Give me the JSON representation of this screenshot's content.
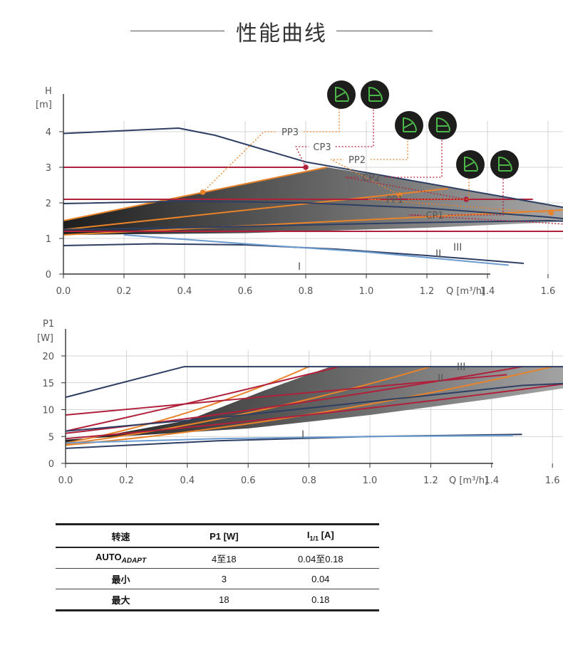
{
  "page": {
    "title": "性能曲线"
  },
  "chart_data": [
    {
      "type": "line",
      "ylabel_top": "H",
      "yunit": "[m]",
      "xlabel": "Q [m³/h]",
      "xlim": [
        0,
        2.6
      ],
      "ylim": [
        0,
        5
      ],
      "xticks": [
        "0.0",
        "0.2",
        "0.4",
        "0.6",
        "0.8",
        "1.0",
        "1.2",
        "1.4",
        "1.6",
        "1.8",
        "2.0",
        "2.2",
        "2.4"
      ],
      "yticks": [
        "0",
        "1",
        "2",
        "3",
        "4"
      ],
      "grid": true,
      "speed_labels": [
        "III",
        "II",
        "I"
      ],
      "mode_icon_names": [
        "proportional-pressure-icon",
        "constant-pressure-icon"
      ],
      "series": [
        {
          "name": "III",
          "color": "#2e3f63",
          "x": [
            0,
            0.38,
            0.5,
            0.8,
            1.2,
            1.6,
            2.0,
            2.4,
            2.55
          ],
          "y": [
            3.95,
            4.1,
            3.9,
            3.15,
            2.55,
            1.95,
            1.35,
            0.8,
            0.82
          ]
        },
        {
          "name": "II",
          "color": "#2e3f63",
          "x": [
            0,
            0.4,
            0.8,
            1.2,
            1.6,
            2.0,
            2.3,
            2.43
          ],
          "y": [
            1.98,
            2.05,
            2.0,
            1.85,
            1.6,
            1.25,
            0.92,
            0.78
          ]
        },
        {
          "name": "I",
          "color": "#2e3f63",
          "x": [
            0,
            0.3,
            0.6,
            0.9,
            1.2,
            1.52
          ],
          "y": [
            0.8,
            0.85,
            0.82,
            0.7,
            0.52,
            0.3
          ]
        },
        {
          "name": "",
          "color": "#6c9bd0",
          "x": [
            0.2,
            0.6,
            1.0,
            1.47
          ],
          "y": [
            1.1,
            0.85,
            0.62,
            0.25
          ]
        },
        {
          "name": "",
          "color": "#2e3f63",
          "x": [
            0,
            0.4,
            0.8,
            1.2,
            1.6,
            2.0
          ],
          "y": [
            1.25,
            1.3,
            1.38,
            1.45,
            1.5,
            1.38
          ]
        }
      ],
      "control_lines": [
        {
          "name": "PP3",
          "type": "pp",
          "x": [
            0,
            0.87
          ],
          "y": [
            1.5,
            3.0
          ],
          "point": [
            0.46,
            2.3
          ]
        },
        {
          "name": "PP2",
          "type": "pp",
          "x": [
            0,
            1.27
          ],
          "y": [
            1.25,
            2.4
          ],
          "point": [
            1.11,
            2.22
          ]
        },
        {
          "name": "PP1",
          "type": "pp",
          "x": [
            0,
            1.65
          ],
          "y": [
            1.1,
            1.8
          ],
          "point": [
            1.61,
            1.72
          ]
        },
        {
          "name": "CP3",
          "type": "cp",
          "x": [
            0,
            0.8
          ],
          "y": [
            3.0,
            3.0
          ],
          "point": [
            0.8,
            3.0
          ]
        },
        {
          "name": "CP2",
          "type": "cp",
          "x": [
            0,
            1.55
          ],
          "y": [
            2.1,
            2.1
          ],
          "point": [
            1.33,
            2.1
          ]
        },
        {
          "name": "CP1",
          "type": "cp",
          "x": [
            0,
            2.15
          ],
          "y": [
            1.2,
            1.2
          ],
          "point": [
            2.06,
            1.2
          ]
        }
      ]
    },
    {
      "type": "line",
      "ylabel_top": "P1",
      "yunit": "[W]",
      "xlabel": "Q [m³/h]",
      "xlim": [
        0,
        2.6
      ],
      "ylim": [
        0,
        22
      ],
      "xticks": [
        "0.0",
        "0.2",
        "0.4",
        "0.6",
        "0.8",
        "1.0",
        "1.2",
        "1.4",
        "1.6",
        "1.8",
        "2.0",
        "2.2",
        "2.4"
      ],
      "yticks": [
        "0",
        "5",
        "10",
        "15",
        "20"
      ],
      "grid": true,
      "speed_labels": [
        "III",
        "II",
        "I"
      ],
      "series": [
        {
          "name": "III",
          "color": "#2e3f63",
          "x": [
            0,
            0.39,
            2.55
          ],
          "y": [
            12.3,
            18,
            18
          ]
        },
        {
          "name": "II",
          "color": "#2e3f63",
          "x": [
            0,
            0.5,
            1.0,
            1.5,
            2.0,
            2.43
          ],
          "y": [
            6.0,
            8.5,
            11.5,
            14.5,
            15.8,
            15.9
          ]
        },
        {
          "name": "I",
          "color": "#2e3f63",
          "x": [
            0,
            0.5,
            1.0,
            1.5
          ],
          "y": [
            2.8,
            4.2,
            5.0,
            5.4
          ]
        },
        {
          "name": "",
          "color": "#6c9bd0",
          "x": [
            0,
            0.5,
            1.0,
            1.47
          ],
          "y": [
            3.8,
            4.6,
            5.0,
            5.2
          ]
        }
      ],
      "control_lines": [
        {
          "name": "PP3",
          "type": "pp",
          "x": [
            0,
            0.4,
            0.8
          ],
          "y": [
            3.8,
            8.0,
            18
          ]
        },
        {
          "name": "PP2",
          "type": "pp",
          "x": [
            0,
            0.6,
            1.2
          ],
          "y": [
            3.6,
            8.0,
            18
          ]
        },
        {
          "name": "PP1",
          "type": "pp",
          "x": [
            0,
            0.8,
            1.6
          ],
          "y": [
            3.4,
            7.5,
            18
          ]
        },
        {
          "name": "CP3",
          "type": "cp",
          "x": [
            0,
            0.4,
            0.9
          ],
          "y": [
            6.0,
            11.0,
            18
          ]
        },
        {
          "name": "CP2",
          "type": "cp",
          "x": [
            0,
            0.7,
            1.5
          ],
          "y": [
            5.6,
            10.0,
            18
          ]
        },
        {
          "name": "CP1",
          "type": "cp",
          "x": [
            0,
            1.0,
            2.05
          ],
          "y": [
            4.6,
            9.5,
            18
          ]
        },
        {
          "name": "",
          "type": "cp",
          "x": [
            0,
            0.8,
            1.45
          ],
          "y": [
            9.0,
            13.2,
            16.5
          ]
        }
      ]
    }
  ],
  "table": {
    "headers": [
      "转速",
      "P1 [W]",
      "I",
      "1/1",
      " [A]"
    ],
    "rows": [
      {
        "speed": "AUTO",
        "speed_sub": "ADAPT",
        "p1": "4至18",
        "i": "0.04至0.18"
      },
      {
        "speed": "最小",
        "p1": "3",
        "i": "0.04"
      },
      {
        "speed": "最大",
        "p1": "18",
        "i": "0.18"
      }
    ]
  },
  "colors": {
    "pump_curve": "#2e3f63",
    "pp_line": "#e8832a",
    "cp_line": "#b0203b",
    "speed_label": "#5ab848",
    "icon_bg": "#1d1d1b",
    "icon_fg": "#4cb648"
  }
}
